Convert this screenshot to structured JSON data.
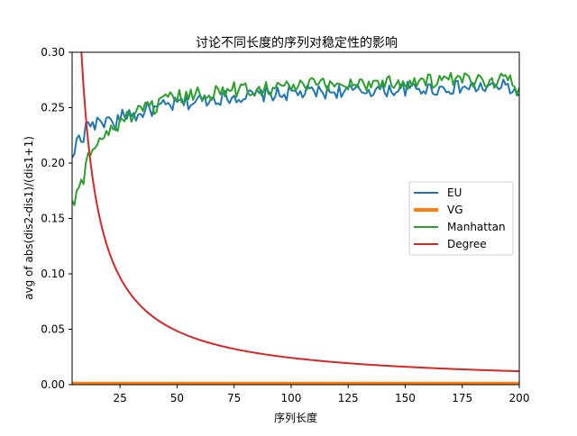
{
  "chart_data": {
    "type": "line",
    "title": "讨论不同长度的序列对稳定性的影响",
    "xlabel": "序列长度",
    "ylabel": "avg of abs(dis2-dis1)/(dis1+1)",
    "xlim": [
      4,
      200
    ],
    "ylim": [
      0,
      0.3
    ],
    "xticks": [
      25,
      50,
      75,
      100,
      125,
      150,
      175,
      200
    ],
    "yticks": [
      0.0,
      0.05,
      0.1,
      0.15,
      0.2,
      0.25,
      0.3
    ],
    "x_tick_labels": [
      "25",
      "50",
      "75",
      "100",
      "125",
      "150",
      "175",
      "200"
    ],
    "y_tick_labels": [
      "0.00",
      "0.05",
      "0.10",
      "0.15",
      "0.20",
      "0.25",
      "0.30"
    ],
    "legend_position": "center-right",
    "grid": false,
    "series": [
      {
        "name": "EU",
        "color": "#1f77b4",
        "points": [
          [
            4,
            0.205
          ],
          [
            5,
            0.208
          ],
          [
            6,
            0.222
          ],
          [
            7,
            0.225
          ],
          [
            8,
            0.219
          ],
          [
            9,
            0.219
          ],
          [
            10,
            0.236
          ],
          [
            11,
            0.237
          ],
          [
            12,
            0.233
          ],
          [
            13,
            0.237
          ],
          [
            14,
            0.23
          ],
          [
            15,
            0.238
          ],
          [
            17,
            0.24
          ],
          [
            19,
            0.236
          ],
          [
            20,
            0.243
          ],
          [
            22,
            0.232
          ],
          [
            25,
            0.241
          ],
          [
            28,
            0.244
          ],
          [
            30,
            0.246
          ],
          [
            33,
            0.241
          ],
          [
            36,
            0.249
          ],
          [
            40,
            0.248
          ],
          [
            44,
            0.251
          ],
          [
            48,
            0.252
          ],
          [
            52,
            0.255
          ],
          [
            56,
            0.254
          ],
          [
            60,
            0.257
          ],
          [
            65,
            0.258
          ],
          [
            70,
            0.259
          ],
          [
            75,
            0.26
          ],
          [
            80,
            0.26
          ],
          [
            85,
            0.261
          ],
          [
            90,
            0.262
          ],
          [
            95,
            0.262
          ],
          [
            100,
            0.263
          ],
          [
            105,
            0.263
          ],
          [
            110,
            0.264
          ],
          [
            115,
            0.264
          ],
          [
            120,
            0.265
          ],
          [
            125,
            0.265
          ],
          [
            130,
            0.265
          ],
          [
            135,
            0.266
          ],
          [
            140,
            0.266
          ],
          [
            145,
            0.266
          ],
          [
            150,
            0.267
          ],
          [
            155,
            0.267
          ],
          [
            160,
            0.267
          ],
          [
            165,
            0.267
          ],
          [
            170,
            0.268
          ],
          [
            175,
            0.268
          ],
          [
            180,
            0.268
          ],
          [
            185,
            0.268
          ],
          [
            190,
            0.269
          ],
          [
            195,
            0.269
          ],
          [
            200,
            0.262
          ]
        ],
        "noise": 0.0065
      },
      {
        "name": "VG",
        "color": "#ff7f0e",
        "points": [
          [
            4,
            0.001
          ],
          [
            200,
            0.001
          ]
        ],
        "noise": 0
      },
      {
        "name": "Manhattan",
        "color": "#2ca02c",
        "points": [
          [
            4,
            0.166
          ],
          [
            5,
            0.162
          ],
          [
            6,
            0.175
          ],
          [
            7,
            0.178
          ],
          [
            8,
            0.185
          ],
          [
            9,
            0.181
          ],
          [
            10,
            0.2
          ],
          [
            11,
            0.209
          ],
          [
            12,
            0.207
          ],
          [
            13,
            0.212
          ],
          [
            15,
            0.215
          ],
          [
            18,
            0.225
          ],
          [
            20,
            0.228
          ],
          [
            23,
            0.232
          ],
          [
            26,
            0.24
          ],
          [
            30,
            0.243
          ],
          [
            34,
            0.245
          ],
          [
            38,
            0.25
          ],
          [
            42,
            0.252
          ],
          [
            46,
            0.256
          ],
          [
            50,
            0.259
          ],
          [
            55,
            0.26
          ],
          [
            60,
            0.262
          ],
          [
            65,
            0.264
          ],
          [
            70,
            0.265
          ],
          [
            75,
            0.266
          ],
          [
            80,
            0.267
          ],
          [
            85,
            0.268
          ],
          [
            90,
            0.268
          ],
          [
            95,
            0.269
          ],
          [
            100,
            0.269
          ],
          [
            105,
            0.27
          ],
          [
            110,
            0.27
          ],
          [
            115,
            0.271
          ],
          [
            120,
            0.271
          ],
          [
            125,
            0.272
          ],
          [
            130,
            0.272
          ],
          [
            135,
            0.272
          ],
          [
            140,
            0.273
          ],
          [
            145,
            0.273
          ],
          [
            150,
            0.273
          ],
          [
            155,
            0.274
          ],
          [
            160,
            0.274
          ],
          [
            165,
            0.274
          ],
          [
            170,
            0.274
          ],
          [
            175,
            0.274
          ],
          [
            180,
            0.274
          ],
          [
            185,
            0.275
          ],
          [
            190,
            0.275
          ],
          [
            195,
            0.275
          ],
          [
            200,
            0.268
          ]
        ],
        "noise": 0.0075
      },
      {
        "name": "Degree",
        "color": "#d62728",
        "formula": "2.42/x",
        "x_range": [
          4,
          200
        ],
        "noise": 0
      }
    ]
  }
}
